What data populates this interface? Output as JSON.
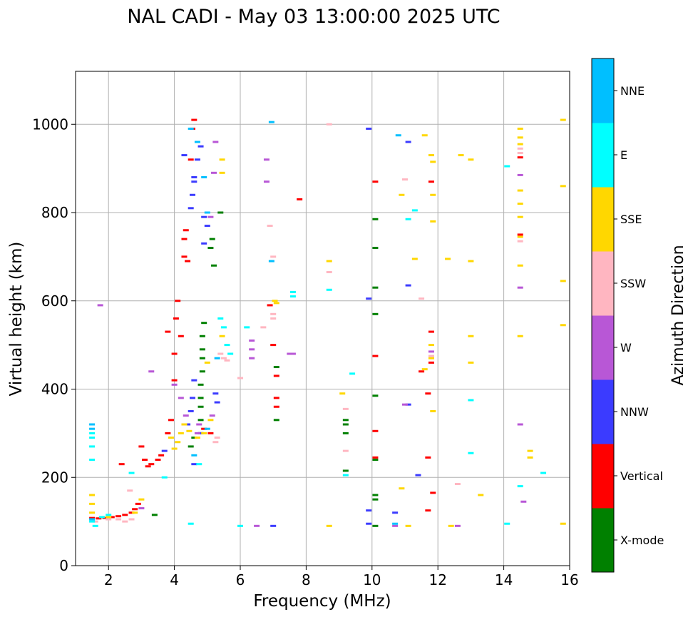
{
  "chart_data": {
    "type": "scatter",
    "title": "NAL CADI - May 03 13:00:00 2025 UTC",
    "xlabel": "Frequency (MHz)",
    "ylabel": "Virtual height (km)",
    "xlim": [
      1,
      16
    ],
    "ylim": [
      0,
      1120
    ],
    "xticks": [
      2,
      4,
      6,
      8,
      10,
      12,
      14,
      16
    ],
    "yticks": [
      0,
      200,
      400,
      600,
      800,
      1000
    ],
    "grid": true,
    "colorbar": {
      "label": "Azimuth Direction",
      "categories": [
        {
          "name": "X-mode",
          "color": "#008000"
        },
        {
          "name": "Vertical",
          "color": "#ff0000"
        },
        {
          "name": "NNW",
          "color": "#3b3bff"
        },
        {
          "name": "W",
          "color": "#b857d6"
        },
        {
          "name": "SSW",
          "color": "#ffb6c1"
        },
        {
          "name": "SSE",
          "color": "#ffd700"
        },
        {
          "name": "E",
          "color": "#00ffff"
        },
        {
          "name": "NNE",
          "color": "#00bfff"
        }
      ]
    },
    "series": [
      {
        "name": "X-mode",
        "color": "#008000",
        "points": [
          [
            4.8,
            300
          ],
          [
            4.8,
            330
          ],
          [
            4.8,
            360
          ],
          [
            4.8,
            380
          ],
          [
            4.8,
            410
          ],
          [
            4.85,
            440
          ],
          [
            4.85,
            470
          ],
          [
            4.85,
            490
          ],
          [
            4.85,
            520
          ],
          [
            4.9,
            550
          ],
          [
            4.5,
            270
          ],
          [
            4.6,
            290
          ],
          [
            5.1,
            720
          ],
          [
            5.15,
            740
          ],
          [
            5.2,
            680
          ],
          [
            5.4,
            800
          ],
          [
            7.1,
            450
          ],
          [
            9.2,
            300
          ],
          [
            9.2,
            320
          ],
          [
            9.2,
            330
          ],
          [
            9.2,
            215
          ],
          [
            10.1,
            385
          ],
          [
            10.1,
            240
          ],
          [
            10.1,
            160
          ],
          [
            10.1,
            150
          ],
          [
            10.1,
            90
          ],
          [
            10.1,
            570
          ],
          [
            10.1,
            630
          ],
          [
            10.1,
            720
          ],
          [
            10.1,
            785
          ],
          [
            3.4,
            115
          ],
          [
            7.1,
            330
          ]
        ]
      },
      {
        "name": "Vertical",
        "color": "#ff0000",
        "points": [
          [
            1.5,
            108
          ],
          [
            1.7,
            107
          ],
          [
            1.9,
            108
          ],
          [
            2.1,
            110
          ],
          [
            2.3,
            112
          ],
          [
            2.5,
            115
          ],
          [
            2.7,
            120
          ],
          [
            2.8,
            128
          ],
          [
            2.9,
            140
          ],
          [
            3.0,
            270
          ],
          [
            3.1,
            240
          ],
          [
            3.2,
            225
          ],
          [
            3.3,
            230
          ],
          [
            3.5,
            240
          ],
          [
            3.6,
            250
          ],
          [
            3.8,
            300
          ],
          [
            3.9,
            330
          ],
          [
            4.0,
            420
          ],
          [
            4.0,
            480
          ],
          [
            4.05,
            560
          ],
          [
            4.1,
            600
          ],
          [
            4.2,
            520
          ],
          [
            4.3,
            700
          ],
          [
            4.3,
            740
          ],
          [
            4.35,
            760
          ],
          [
            4.4,
            690
          ],
          [
            4.5,
            920
          ],
          [
            4.55,
            990
          ],
          [
            4.6,
            1010
          ],
          [
            3.8,
            530
          ],
          [
            2.4,
            230
          ],
          [
            6.9,
            590
          ],
          [
            7.0,
            500
          ],
          [
            7.1,
            430
          ],
          [
            7.1,
            380
          ],
          [
            7.1,
            360
          ],
          [
            7.8,
            830
          ],
          [
            10.1,
            870
          ],
          [
            10.1,
            475
          ],
          [
            10.1,
            305
          ],
          [
            10.1,
            245
          ],
          [
            11.5,
            440
          ],
          [
            11.7,
            390
          ],
          [
            11.8,
            530
          ],
          [
            11.8,
            460
          ],
          [
            11.85,
            165
          ],
          [
            11.8,
            870
          ],
          [
            11.7,
            245
          ],
          [
            11.7,
            125
          ],
          [
            14.5,
            925
          ],
          [
            14.5,
            750
          ],
          [
            5.1,
            300
          ],
          [
            4.9,
            310
          ]
        ]
      },
      {
        "name": "NNW",
        "color": "#3b3bff",
        "points": [
          [
            4.5,
            810
          ],
          [
            4.55,
            840
          ],
          [
            4.6,
            870
          ],
          [
            4.7,
            920
          ],
          [
            4.8,
            950
          ],
          [
            4.9,
            790
          ],
          [
            5.0,
            770
          ],
          [
            4.9,
            730
          ],
          [
            4.6,
            880
          ],
          [
            4.3,
            930
          ],
          [
            4.4,
            320
          ],
          [
            4.5,
            350
          ],
          [
            4.55,
            380
          ],
          [
            4.6,
            420
          ],
          [
            4.8,
            300
          ],
          [
            5.25,
            390
          ],
          [
            5.3,
            370
          ],
          [
            9.9,
            990
          ],
          [
            9.9,
            605
          ],
          [
            9.9,
            125
          ],
          [
            9.9,
            95
          ],
          [
            10.7,
            120
          ],
          [
            11.1,
            960
          ],
          [
            11.1,
            635
          ],
          [
            11.1,
            365
          ],
          [
            11.4,
            205
          ],
          [
            7.0,
            90
          ],
          [
            4.6,
            230
          ],
          [
            3.7,
            260
          ]
        ]
      },
      {
        "name": "W",
        "color": "#b857d6",
        "points": [
          [
            1.75,
            590
          ],
          [
            3.0,
            130
          ],
          [
            3.3,
            440
          ],
          [
            4.0,
            410
          ],
          [
            4.2,
            380
          ],
          [
            4.35,
            340
          ],
          [
            4.7,
            300
          ],
          [
            4.75,
            320
          ],
          [
            5.15,
            340
          ],
          [
            5.2,
            890
          ],
          [
            5.25,
            960
          ],
          [
            5.1,
            790
          ],
          [
            6.35,
            510
          ],
          [
            6.35,
            490
          ],
          [
            6.35,
            470
          ],
          [
            6.5,
            90
          ],
          [
            6.8,
            920
          ],
          [
            6.8,
            870
          ],
          [
            7.5,
            480
          ],
          [
            7.6,
            480
          ],
          [
            10.7,
            90
          ],
          [
            11.8,
            485
          ],
          [
            12.6,
            90
          ],
          [
            14.5,
            630
          ],
          [
            14.5,
            885
          ],
          [
            14.6,
            145
          ],
          [
            14.5,
            320
          ],
          [
            11.0,
            365
          ]
        ]
      },
      {
        "name": "SSW",
        "color": "#ffb6c1",
        "points": [
          [
            1.6,
            100
          ],
          [
            2.0,
            105
          ],
          [
            2.3,
            105
          ],
          [
            2.5,
            100
          ],
          [
            2.7,
            105
          ],
          [
            2.65,
            170
          ],
          [
            5.3,
            290
          ],
          [
            5.25,
            280
          ],
          [
            5.5,
            470
          ],
          [
            5.4,
            480
          ],
          [
            5.6,
            465
          ],
          [
            6.7,
            540
          ],
          [
            6.9,
            770
          ],
          [
            7.0,
            570
          ],
          [
            7.0,
            560
          ],
          [
            7.0,
            700
          ],
          [
            8.7,
            665
          ],
          [
            8.7,
            1000
          ],
          [
            9.2,
            355
          ],
          [
            9.2,
            260
          ],
          [
            11.0,
            875
          ],
          [
            11.5,
            605
          ],
          [
            11.8,
            475
          ],
          [
            12.6,
            185
          ],
          [
            14.5,
            945
          ],
          [
            14.5,
            935
          ],
          [
            14.5,
            735
          ],
          [
            6.0,
            425
          ]
        ]
      },
      {
        "name": "SSE",
        "color": "#ffd700",
        "points": [
          [
            1.5,
            160
          ],
          [
            1.5,
            140
          ],
          [
            1.5,
            120
          ],
          [
            2.0,
            110
          ],
          [
            2.8,
            120
          ],
          [
            3.0,
            150
          ],
          [
            3.9,
            290
          ],
          [
            4.0,
            265
          ],
          [
            4.1,
            280
          ],
          [
            4.2,
            300
          ],
          [
            4.3,
            320
          ],
          [
            4.45,
            305
          ],
          [
            4.7,
            290
          ],
          [
            4.9,
            300
          ],
          [
            5.0,
            460
          ],
          [
            5.1,
            330
          ],
          [
            5.45,
            920
          ],
          [
            5.45,
            890
          ],
          [
            5.45,
            520
          ],
          [
            7.1,
            595
          ],
          [
            7.05,
            600
          ],
          [
            8.7,
            690
          ],
          [
            8.7,
            90
          ],
          [
            9.1,
            390
          ],
          [
            10.9,
            840
          ],
          [
            10.9,
            175
          ],
          [
            11.1,
            90
          ],
          [
            11.3,
            695
          ],
          [
            11.6,
            975
          ],
          [
            11.6,
            445
          ],
          [
            11.8,
            930
          ],
          [
            11.85,
            915
          ],
          [
            11.85,
            840
          ],
          [
            11.85,
            780
          ],
          [
            11.8,
            500
          ],
          [
            11.8,
            470
          ],
          [
            11.85,
            350
          ],
          [
            12.3,
            695
          ],
          [
            12.4,
            90
          ],
          [
            12.7,
            930
          ],
          [
            13.0,
            920
          ],
          [
            13.0,
            690
          ],
          [
            13.0,
            520
          ],
          [
            13.0,
            460
          ],
          [
            13.3,
            160
          ],
          [
            14.5,
            990
          ],
          [
            14.5,
            970
          ],
          [
            14.5,
            955
          ],
          [
            14.5,
            850
          ],
          [
            14.5,
            820
          ],
          [
            14.5,
            790
          ],
          [
            14.5,
            745
          ],
          [
            14.5,
            680
          ],
          [
            14.5,
            520
          ],
          [
            14.8,
            260
          ],
          [
            14.8,
            245
          ],
          [
            15.8,
            1010
          ],
          [
            15.8,
            860
          ],
          [
            15.8,
            645
          ],
          [
            15.8,
            545
          ],
          [
            15.8,
            95
          ]
        ]
      },
      {
        "name": "E",
        "color": "#00ffff",
        "points": [
          [
            1.5,
            300
          ],
          [
            1.5,
            290
          ],
          [
            1.5,
            270
          ],
          [
            1.5,
            240
          ],
          [
            1.5,
            100
          ],
          [
            1.6,
            90
          ],
          [
            1.8,
            110
          ],
          [
            2.0,
            115
          ],
          [
            2.7,
            210
          ],
          [
            3.7,
            200
          ],
          [
            4.5,
            95
          ],
          [
            4.75,
            230
          ],
          [
            5.4,
            560
          ],
          [
            5.5,
            540
          ],
          [
            5.6,
            500
          ],
          [
            5.7,
            480
          ],
          [
            6.2,
            540
          ],
          [
            6.0,
            90
          ],
          [
            7.6,
            620
          ],
          [
            7.6,
            610
          ],
          [
            8.7,
            625
          ],
          [
            9.2,
            205
          ],
          [
            9.4,
            435
          ],
          [
            11.1,
            785
          ],
          [
            11.3,
            805
          ],
          [
            13.0,
            375
          ],
          [
            13.0,
            255
          ],
          [
            14.1,
            905
          ],
          [
            14.1,
            95
          ],
          [
            14.5,
            180
          ],
          [
            15.2,
            210
          ]
        ]
      },
      {
        "name": "NNE",
        "color": "#00bfff",
        "points": [
          [
            1.5,
            320
          ],
          [
            1.5,
            310
          ],
          [
            1.5,
            105
          ],
          [
            4.5,
            990
          ],
          [
            4.7,
            960
          ],
          [
            4.9,
            880
          ],
          [
            5.0,
            800
          ],
          [
            6.95,
            1005
          ],
          [
            6.95,
            690
          ],
          [
            10.8,
            975
          ],
          [
            10.7,
            95
          ],
          [
            4.6,
            250
          ],
          [
            5.3,
            470
          ],
          [
            5.0,
            310
          ]
        ]
      }
    ]
  }
}
